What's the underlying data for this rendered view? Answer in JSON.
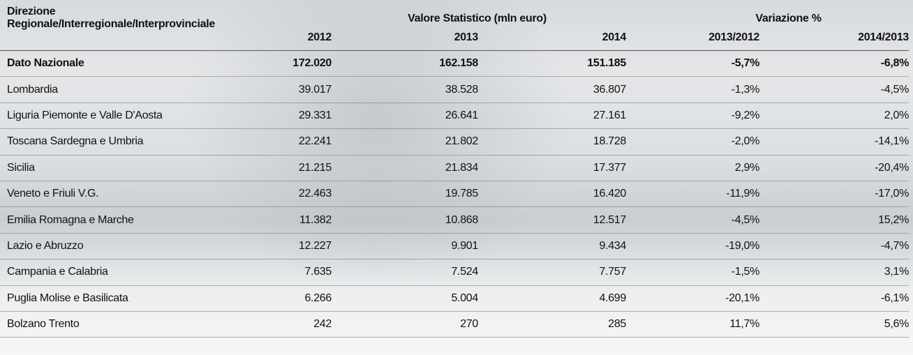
{
  "table": {
    "header": {
      "first_column": "Direzione Regionale/Interregionale/Interprovinciale",
      "groups": [
        "Valore Statistico (mln euro)",
        "Variazione %"
      ],
      "columns": [
        "2012",
        "2013",
        "2014",
        "2013/2012",
        "2014/2013"
      ]
    },
    "rows": [
      [
        "Dato Nazionale",
        "172.020",
        "162.158",
        "151.185",
        "-5,7%",
        "-6,8%"
      ],
      [
        "Lombardia",
        "39.017",
        "38.528",
        "36.807",
        "-1,3%",
        "-4,5%"
      ],
      [
        "Liguria Piemonte e Valle D'Aosta",
        "29.331",
        "26.641",
        "27.161",
        "-9,2%",
        "2,0%"
      ],
      [
        "Toscana Sardegna e Umbria",
        "22.241",
        "21.802",
        "18.728",
        "-2,0%",
        "-14,1%"
      ],
      [
        "Sicilia",
        "21.215",
        "21.834",
        "17.377",
        "2,9%",
        "-20,4%"
      ],
      [
        "Veneto e Friuli V.G.",
        "22.463",
        "19.785",
        "16.420",
        "-11,9%",
        "-17,0%"
      ],
      [
        "Emilia Romagna e Marche",
        "11.382",
        "10.868",
        "12.517",
        "-4,5%",
        "15,2%"
      ],
      [
        "Lazio e Abruzzo",
        "12.227",
        "9.901",
        "9.434",
        "-19,0%",
        "-4,7%"
      ],
      [
        "Campania e Calabria",
        "7.635",
        "7.524",
        "7.757",
        "-1,5%",
        "3,1%"
      ],
      [
        "Puglia Molise e Basilicata",
        "6.266",
        "5.004",
        "4.699",
        "-20,1%",
        "-6,1%"
      ],
      [
        "Bolzano Trento",
        "242",
        "270",
        "285",
        "11,7%",
        "5,6%"
      ]
    ]
  }
}
